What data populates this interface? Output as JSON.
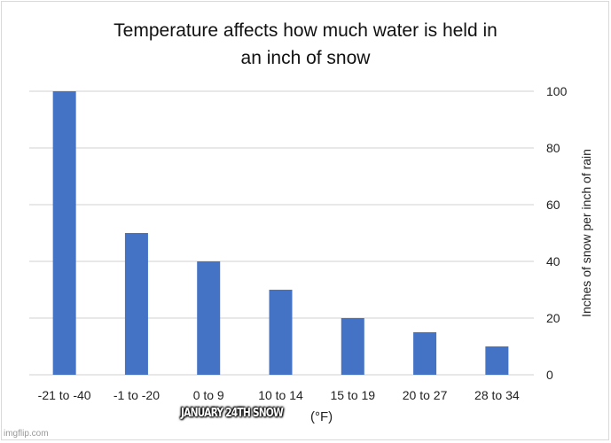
{
  "chart_data": {
    "type": "bar",
    "title": "Temperature affects how much water is held in an inch of snow",
    "title_lines": [
      "Temperature affects how much water is held in",
      "an inch of snow"
    ],
    "categories": [
      "-21 to -40",
      "-1 to -20",
      "0 to 9",
      "10 to 14",
      "15 to 19",
      "20 to 27",
      "28 to 34"
    ],
    "values": [
      100,
      50,
      40,
      30,
      20,
      15,
      10
    ],
    "xlabel": "Temperature (°F)",
    "xlabel_visible_tail": "(°F)",
    "ylabel": "Inches of snow per inch of rain",
    "ylim": [
      0,
      100
    ],
    "yticks": [
      0,
      20,
      40,
      60,
      80,
      100
    ],
    "y_axis_side": "right",
    "grid": true,
    "bar_color": "#4472c4",
    "grid_color": "#d9d9d9"
  },
  "overlay_caption": "JANUARY  24TH SNOW",
  "watermark": "imgflip.com"
}
